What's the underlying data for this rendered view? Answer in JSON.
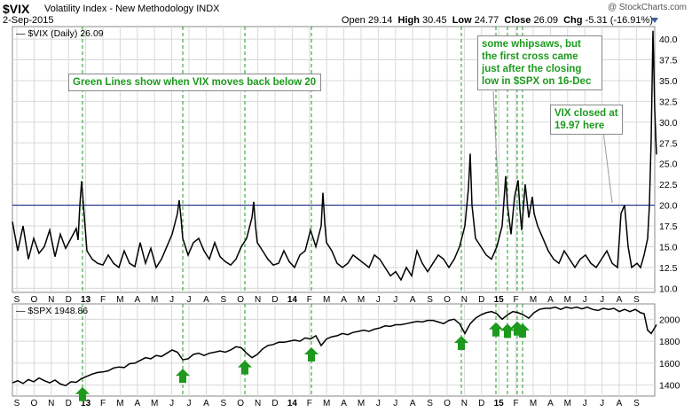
{
  "header": {
    "symbol": "$VIX",
    "description": "Volatility Index - New Methodology INDX",
    "date": "2-Sep-2015",
    "brand": "@ StockCharts.com",
    "ohlc": {
      "open": "29.14",
      "high": "30.45",
      "low": "24.77",
      "close": "26.09",
      "chg": "-5.31 (-16.91%)"
    },
    "open_label": "Open",
    "high_label": "High",
    "low_label": "Low",
    "close_label": "Close",
    "chg_label": "Chg"
  },
  "annotations": {
    "green_lines": "Green Lines show when VIX moves back below 20",
    "whipsaw": "some whipsaws, but the first cross came just after the closing low in $SPX on 16-Dec",
    "vix_closed": "VIX closed at 19.97 here"
  },
  "colors": {
    "signal": "#1d9a1d",
    "line": "#000000",
    "threshold": "#1a2a8a",
    "grid": "#d8d8d8"
  },
  "chart_data": [
    {
      "type": "line",
      "legend": "$VIX (Daily) 26.09",
      "ylim": [
        9.5,
        41.5
      ],
      "yticks": [
        10.0,
        12.5,
        15.0,
        17.5,
        20.0,
        22.5,
        25.0,
        27.5,
        30.0,
        32.5,
        35.0,
        37.5,
        40.0
      ],
      "threshold": 20.0,
      "series": [
        {
          "x": [
            0,
            6,
            12,
            18,
            24,
            30,
            36,
            42,
            48,
            54,
            60,
            66,
            72,
            74,
            76,
            78,
            84,
            90,
            96,
            102,
            108,
            114,
            120,
            126,
            132,
            138,
            144,
            150,
            156,
            162,
            168,
            174,
            180,
            186,
            188,
            190,
            192,
            198,
            204,
            210,
            216,
            222,
            228,
            234,
            240,
            246,
            252,
            258,
            264,
            270,
            272,
            274,
            276,
            282,
            288,
            294,
            300,
            306,
            312,
            318,
            324,
            330,
            336,
            342,
            348,
            350,
            352,
            354,
            360,
            366,
            372,
            378,
            384,
            390,
            396,
            402,
            408,
            414,
            420,
            426,
            432,
            438,
            444,
            450,
            456,
            462,
            468,
            474,
            480,
            486,
            492,
            498,
            504,
            510,
            514,
            516,
            518,
            522,
            528,
            534,
            540,
            546,
            552,
            556,
            558,
            562,
            566,
            570,
            572,
            574,
            578,
            582,
            586,
            588,
            592,
            598,
            604,
            610,
            616,
            622,
            628,
            634,
            640,
            646,
            652,
            658,
            664,
            670,
            676,
            682,
            686,
            690,
            694,
            698,
            704,
            708,
            712,
            716,
            718,
            720,
            722,
            724,
            726
          ],
          "values": [
            18.0,
            14.5,
            17.5,
            13.5,
            16.0,
            14.2,
            15.0,
            17.0,
            13.8,
            16.5,
            14.8,
            16.0,
            17.2,
            15.8,
            20.0,
            22.9,
            14.5,
            13.5,
            13.0,
            12.8,
            14.0,
            13.0,
            12.5,
            14.5,
            13.0,
            12.6,
            15.5,
            13.0,
            14.8,
            12.5,
            13.5,
            15.0,
            16.5,
            19.0,
            20.6,
            18.5,
            16.0,
            14.0,
            15.5,
            16.0,
            14.5,
            13.5,
            15.5,
            13.8,
            13.2,
            12.8,
            13.5,
            15.0,
            16.0,
            18.5,
            20.4,
            17.5,
            15.5,
            14.5,
            13.5,
            12.8,
            13.0,
            14.5,
            13.2,
            12.5,
            14.0,
            14.5,
            17.0,
            15.0,
            17.5,
            21.5,
            18.0,
            15.5,
            14.5,
            13.0,
            12.5,
            13.0,
            14.0,
            13.5,
            13.0,
            12.5,
            14.0,
            13.5,
            12.5,
            11.5,
            12.0,
            11.0,
            12.5,
            11.5,
            14.5,
            13.0,
            12.0,
            13.0,
            14.0,
            13.5,
            12.5,
            13.5,
            15.0,
            17.5,
            22.0,
            26.2,
            20.0,
            16.0,
            15.0,
            14.0,
            13.5,
            15.0,
            17.5,
            23.5,
            20.0,
            16.5,
            21.0,
            23.0,
            19.5,
            17.0,
            22.5,
            18.5,
            21.0,
            19.0,
            17.5,
            16.0,
            14.5,
            13.5,
            13.0,
            14.5,
            13.5,
            12.5,
            13.5,
            14.0,
            13.0,
            12.5,
            13.5,
            14.5,
            13.0,
            12.5,
            19.0,
            20.0,
            15.0,
            12.5,
            13.0,
            12.5,
            14.0,
            16.0,
            20.0,
            28.0,
            41.0,
            31.5,
            26.1
          ]
        }
      ]
    },
    {
      "type": "line",
      "legend": "$SPX 1948.86",
      "ylim": [
        1300,
        2140
      ],
      "yticks": [
        1400,
        1600,
        1800,
        2000
      ],
      "series": [
        {
          "x": [
            0,
            6,
            12,
            18,
            24,
            30,
            36,
            42,
            48,
            54,
            60,
            66,
            72,
            78,
            84,
            90,
            96,
            102,
            108,
            114,
            120,
            126,
            132,
            138,
            144,
            150,
            156,
            162,
            168,
            174,
            180,
            186,
            192,
            198,
            204,
            210,
            216,
            222,
            228,
            234,
            240,
            246,
            252,
            258,
            264,
            270,
            276,
            282,
            288,
            294,
            300,
            306,
            312,
            318,
            324,
            330,
            336,
            342,
            348,
            354,
            360,
            366,
            372,
            378,
            384,
            390,
            396,
            402,
            408,
            414,
            420,
            426,
            432,
            438,
            444,
            450,
            456,
            462,
            468,
            474,
            480,
            486,
            492,
            498,
            504,
            510,
            516,
            522,
            528,
            534,
            540,
            546,
            552,
            558,
            564,
            570,
            576,
            582,
            588,
            594,
            600,
            606,
            612,
            618,
            624,
            630,
            636,
            642,
            648,
            654,
            660,
            666,
            672,
            678,
            684,
            690,
            696,
            702,
            708,
            712,
            716,
            720,
            726
          ],
          "values": [
            1420,
            1440,
            1415,
            1450,
            1430,
            1465,
            1440,
            1420,
            1445,
            1410,
            1395,
            1430,
            1425,
            1460,
            1480,
            1500,
            1515,
            1520,
            1530,
            1555,
            1565,
            1560,
            1595,
            1600,
            1625,
            1650,
            1640,
            1670,
            1660,
            1690,
            1720,
            1700,
            1630,
            1640,
            1680,
            1690,
            1670,
            1690,
            1700,
            1710,
            1700,
            1720,
            1750,
            1740,
            1690,
            1650,
            1680,
            1730,
            1760,
            1770,
            1790,
            1790,
            1800,
            1810,
            1800,
            1830,
            1820,
            1850,
            1760,
            1820,
            1840,
            1850,
            1870,
            1860,
            1880,
            1890,
            1900,
            1890,
            1910,
            1920,
            1940,
            1935,
            1950,
            1950,
            1960,
            1970,
            1980,
            1975,
            1990,
            1990,
            1975,
            1960,
            1990,
            2000,
            1960,
            1870,
            1960,
            2010,
            2040,
            2060,
            2070,
            2050,
            2000,
            2040,
            2070,
            2060,
            2040,
            2010,
            2060,
            2090,
            2100,
            2100,
            2110,
            2090,
            2110,
            2100,
            2110,
            2095,
            2110,
            2090,
            2080,
            2100,
            2090,
            2100,
            2070,
            2090,
            2070,
            2090,
            2060,
            2050,
            1900,
            1870,
            1950
          ]
        }
      ]
    }
  ],
  "x_axis_labels": [
    "S",
    "O",
    "N",
    "D",
    "13",
    "F",
    "M",
    "A",
    "M",
    "J",
    "J",
    "A",
    "S",
    "O",
    "N",
    "D",
    "14",
    "F",
    "M",
    "A",
    "M",
    "J",
    "J",
    "A",
    "S",
    "O",
    "N",
    "D",
    "15",
    "F",
    "M",
    "A",
    "M",
    "J",
    "J",
    "A",
    "S"
  ],
  "signal_lines_x": [
    93,
    206,
    276,
    351,
    520,
    559,
    572,
    583,
    589
  ],
  "arrows_x": [
    93,
    206,
    276,
    351,
    520,
    559,
    572,
    583,
    589
  ]
}
